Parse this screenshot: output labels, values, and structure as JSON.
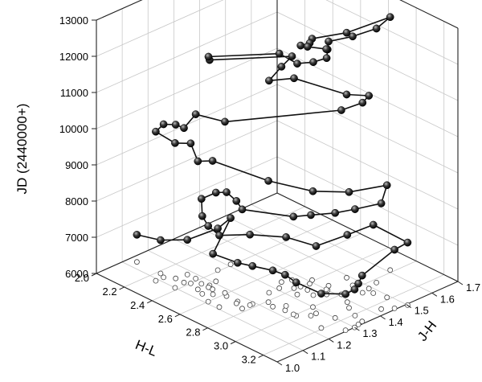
{
  "chart_data": {
    "type": "scatter",
    "projection": "3d",
    "title": "",
    "x_axis": {
      "label": "H-L",
      "range": [
        2.0,
        3.3
      ],
      "ticks": [
        "2.0",
        "2.2",
        "2.4",
        "2.6",
        "2.8",
        "3.0",
        "3.2"
      ]
    },
    "y_axis": {
      "label": "J-H",
      "range": [
        1.0,
        1.7
      ],
      "ticks": [
        "1.0",
        "1.1",
        "1.2",
        "1.3",
        "1.4",
        "1.5",
        "1.6",
        "1.7"
      ]
    },
    "z_axis": {
      "label": "JD (2440000+)",
      "range": [
        6000,
        13000
      ],
      "ticks": [
        "6000",
        "7000",
        "8000",
        "9000",
        "10000",
        "11000",
        "12000",
        "13000"
      ]
    },
    "grid": true,
    "marker_color": "#2a2a2a",
    "line_color": "#111111",
    "shadow_marker": "open-circle",
    "series": [
      {
        "connected": true,
        "projected_to_floor": true,
        "points": [
          [
            2.05,
            1.13,
            6750
          ],
          [
            2.22,
            1.13,
            6920
          ],
          [
            2.32,
            1.18,
            6960
          ],
          [
            2.39,
            1.26,
            7150
          ],
          [
            2.39,
            1.31,
            7280
          ],
          [
            2.56,
            1.15,
            7120
          ],
          [
            2.7,
            1.17,
            7070
          ],
          [
            2.77,
            1.19,
            7050
          ],
          [
            2.86,
            1.22,
            7000
          ],
          [
            2.93,
            1.23,
            6980
          ],
          [
            3.01,
            1.23,
            6920
          ],
          [
            3.19,
            1.23,
            6950
          ],
          [
            3.29,
            1.27,
            7000
          ],
          [
            3.3,
            1.3,
            7050
          ],
          [
            3.29,
            1.32,
            7130
          ],
          [
            3.28,
            1.34,
            7270
          ],
          [
            3.29,
            1.46,
            7620
          ],
          [
            3.31,
            1.5,
            7730
          ],
          [
            3.1,
            1.48,
            7890
          ],
          [
            3.08,
            1.39,
            7860
          ],
          [
            3.06,
            1.28,
            7860
          ],
          [
            2.9,
            1.25,
            7900
          ],
          [
            2.77,
            1.18,
            7950
          ],
          [
            2.68,
            1.11,
            7980
          ],
          [
            2.6,
            1.11,
            8090
          ],
          [
            2.52,
            1.13,
            8150
          ],
          [
            2.44,
            1.17,
            8350
          ],
          [
            2.47,
            1.21,
            8450
          ],
          [
            2.62,
            1.17,
            8870
          ],
          [
            2.71,
            1.16,
            8830
          ],
          [
            2.77,
            1.15,
            8740
          ],
          [
            2.99,
            1.23,
            8700
          ],
          [
            3.06,
            1.26,
            8780
          ],
          [
            3.16,
            1.3,
            8900
          ],
          [
            3.21,
            1.35,
            8940
          ],
          [
            3.25,
            1.43,
            8920
          ],
          [
            3.18,
            1.49,
            9100
          ],
          [
            3.13,
            1.37,
            9200
          ],
          [
            3.0,
            1.3,
            9200
          ],
          [
            2.81,
            1.23,
            9350
          ],
          [
            2.52,
            1.17,
            9550
          ],
          [
            2.47,
            1.14,
            9540
          ],
          [
            2.4,
            1.15,
            9870
          ],
          [
            2.38,
            1.1,
            10000
          ],
          [
            2.26,
            1.09,
            10120
          ],
          [
            2.26,
            1.12,
            10230
          ],
          [
            2.31,
            1.14,
            10250
          ],
          [
            2.37,
            1.14,
            10270
          ],
          [
            2.38,
            1.18,
            10540
          ],
          [
            2.59,
            1.18,
            10730
          ],
          [
            3.0,
            1.41,
            11090
          ],
          [
            3.06,
            1.46,
            11250
          ],
          [
            3.05,
            1.49,
            11330
          ],
          [
            3.02,
            1.42,
            11530
          ],
          [
            2.79,
            1.34,
            11800
          ],
          [
            2.74,
            1.27,
            11860
          ],
          [
            2.7,
            1.34,
            11950
          ],
          [
            2.72,
            1.37,
            12180
          ],
          [
            2.48,
            1.18,
            12230
          ],
          [
            2.49,
            1.17,
            12370
          ],
          [
            2.74,
            1.31,
            12480
          ],
          [
            2.85,
            1.32,
            12380
          ],
          [
            2.91,
            1.35,
            12440
          ],
          [
            2.95,
            1.38,
            12530
          ],
          [
            2.92,
            1.4,
            12650
          ],
          [
            2.89,
            1.42,
            12750
          ],
          [
            2.97,
            1.47,
            12880
          ],
          [
            3.03,
            1.53,
            13020
          ],
          [
            2.98,
            1.61,
            12990
          ],
          [
            2.89,
            1.49,
            12770
          ],
          [
            2.79,
            1.41,
            12670
          ],
          [
            2.81,
            1.39,
            12650
          ],
          [
            2.8,
            1.36,
            12660
          ],
          [
            2.85,
            1.36,
            12720
          ],
          [
            2.91,
            1.4,
            12640
          ]
        ]
      }
    ]
  }
}
